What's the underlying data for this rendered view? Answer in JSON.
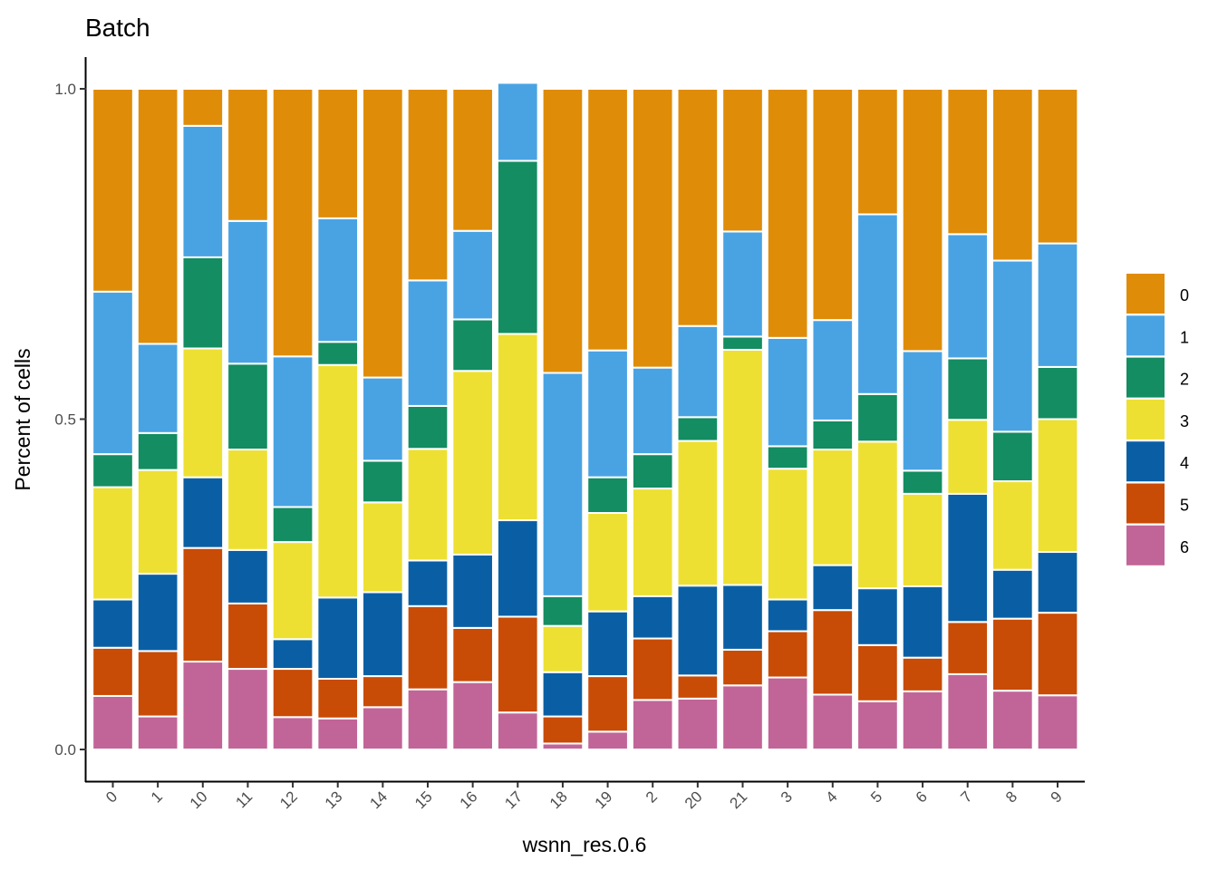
{
  "chart_data": {
    "type": "bar",
    "stacked": true,
    "title": "Batch",
    "xlabel": "wsnn_res.0.6",
    "ylabel": "Percent of cells",
    "ylim": [
      0,
      1
    ],
    "yticks": [
      "0.0",
      "0.5",
      "1.0"
    ],
    "categories": [
      "0",
      "1",
      "10",
      "11",
      "12",
      "13",
      "14",
      "15",
      "16",
      "17",
      "18",
      "19",
      "2",
      "20",
      "21",
      "3",
      "4",
      "5",
      "6",
      "7",
      "8",
      "9"
    ],
    "series": [
      {
        "name": "6",
        "color": "#C16598",
        "values": [
          0.081,
          0.05,
          0.133,
          0.122,
          0.049,
          0.047,
          0.064,
          0.091,
          0.102,
          0.056,
          0.009,
          0.027,
          0.075,
          0.077,
          0.097,
          0.109,
          0.083,
          0.073,
          0.088,
          0.114,
          0.089,
          0.082
        ]
      },
      {
        "name": "5",
        "color": "#C84B06",
        "values": [
          0.073,
          0.099,
          0.172,
          0.099,
          0.073,
          0.06,
          0.047,
          0.126,
          0.082,
          0.145,
          0.041,
          0.084,
          0.093,
          0.035,
          0.054,
          0.07,
          0.128,
          0.085,
          0.051,
          0.079,
          0.109,
          0.125
        ]
      },
      {
        "name": "4",
        "color": "#0A5FA4",
        "values": [
          0.073,
          0.117,
          0.107,
          0.081,
          0.045,
          0.123,
          0.127,
          0.069,
          0.111,
          0.146,
          0.067,
          0.098,
          0.064,
          0.136,
          0.098,
          0.048,
          0.068,
          0.086,
          0.108,
          0.194,
          0.074,
          0.092
        ]
      },
      {
        "name": "3",
        "color": "#EDE032",
        "values": [
          0.17,
          0.157,
          0.195,
          0.152,
          0.147,
          0.352,
          0.136,
          0.169,
          0.278,
          0.282,
          0.07,
          0.149,
          0.163,
          0.219,
          0.356,
          0.198,
          0.175,
          0.222,
          0.14,
          0.112,
          0.134,
          0.201
        ]
      },
      {
        "name": "2",
        "color": "#138D61",
        "values": [
          0.05,
          0.056,
          0.138,
          0.13,
          0.053,
          0.035,
          0.063,
          0.065,
          0.078,
          0.262,
          0.045,
          0.054,
          0.052,
          0.036,
          0.02,
          0.034,
          0.044,
          0.072,
          0.035,
          0.093,
          0.075,
          0.079
        ]
      },
      {
        "name": "1",
        "color": "#49A3E3",
        "values": [
          0.246,
          0.135,
          0.199,
          0.216,
          0.228,
          0.187,
          0.126,
          0.19,
          0.134,
          0.118,
          0.338,
          0.192,
          0.131,
          0.138,
          0.159,
          0.164,
          0.152,
          0.272,
          0.181,
          0.188,
          0.259,
          0.187
        ]
      },
      {
        "name": "0",
        "color": "#DF8C09",
        "values": [
          0.307,
          0.386,
          0.056,
          0.2,
          0.405,
          0.196,
          0.437,
          0.29,
          0.215,
          0.0,
          0.43,
          0.396,
          0.422,
          0.359,
          0.216,
          0.377,
          0.35,
          0.19,
          0.397,
          0.22,
          0.26,
          0.234
        ]
      }
    ],
    "legend": {
      "position": "right",
      "entries": [
        {
          "label": "0",
          "color": "#DF8C09"
        },
        {
          "label": "1",
          "color": "#49A3E3"
        },
        {
          "label": "2",
          "color": "#138D61"
        },
        {
          "label": "3",
          "color": "#EDE032"
        },
        {
          "label": "4",
          "color": "#0A5FA4"
        },
        {
          "label": "5",
          "color": "#C84B06"
        },
        {
          "label": "6",
          "color": "#C16598"
        }
      ]
    }
  }
}
